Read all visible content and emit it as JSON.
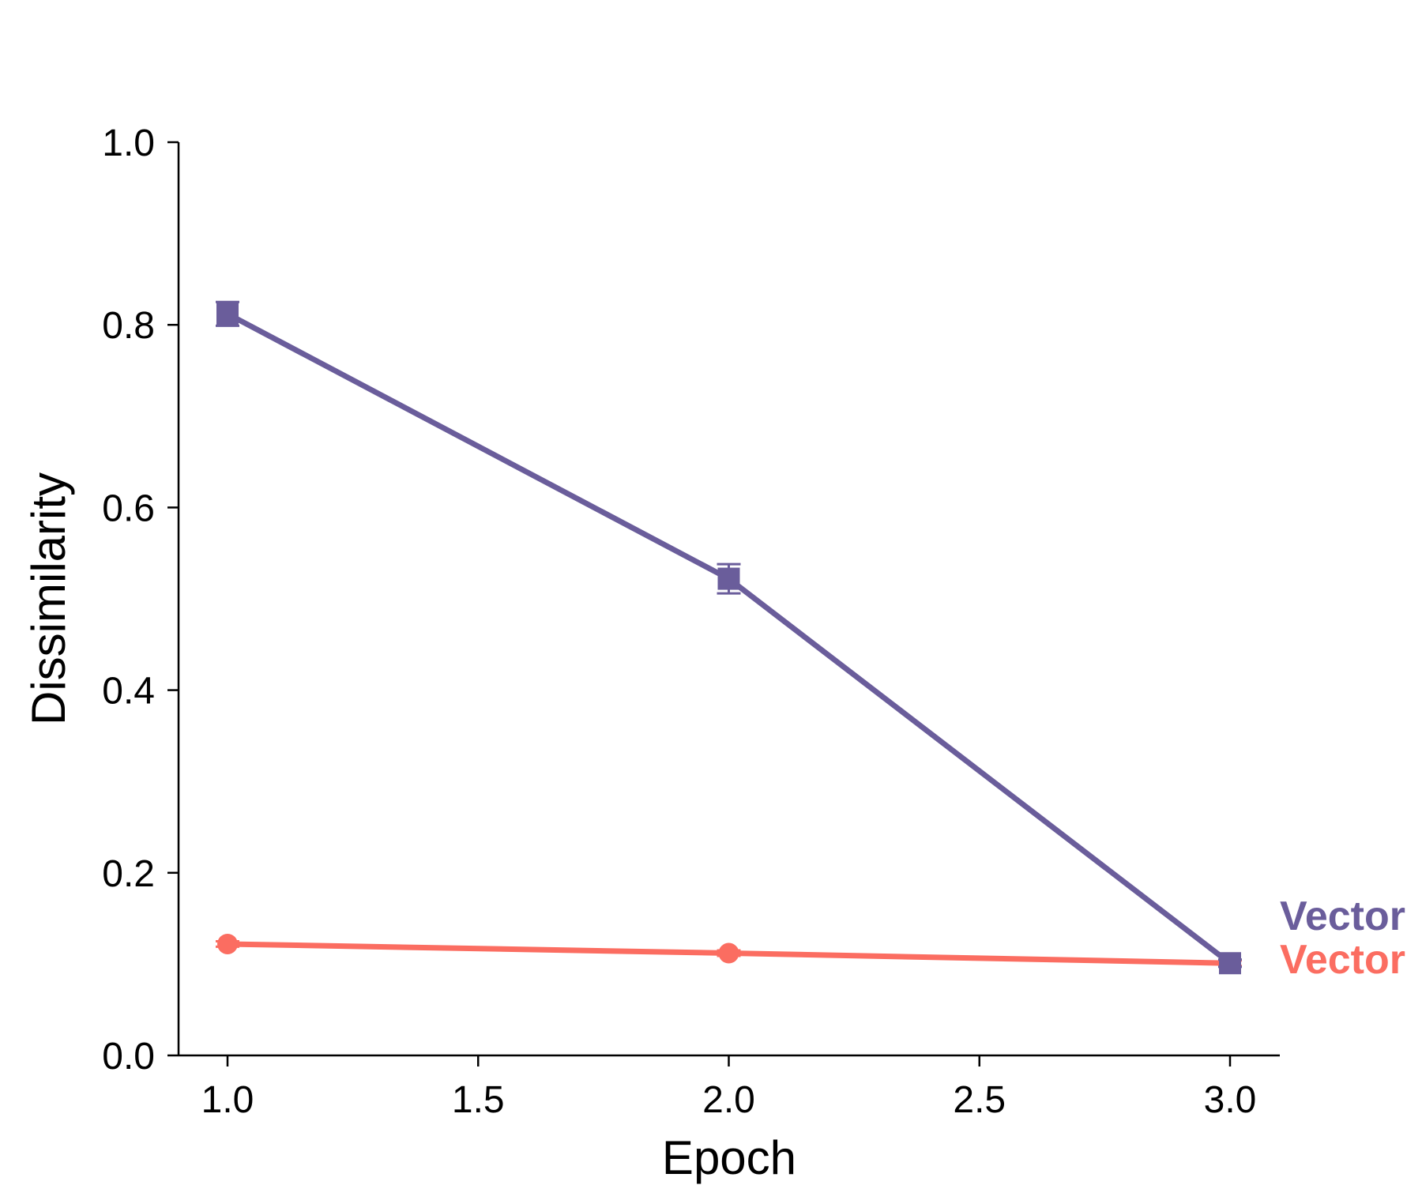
{
  "chart_data": {
    "type": "line",
    "title": "",
    "xlabel": "Epoch",
    "ylabel": "Dissimilarity",
    "xlim": [
      0.9,
      3.1
    ],
    "ylim": [
      0.0,
      1.0
    ],
    "xticks": [
      1.0,
      1.5,
      2.0,
      2.5,
      3.0
    ],
    "xtick_labels": [
      "1.0",
      "1.5",
      "2.0",
      "2.5",
      "3.0"
    ],
    "yticks": [
      0.0,
      0.2,
      0.4,
      0.6,
      0.8,
      1.0
    ],
    "ytick_labels": [
      "0.0",
      "0.2",
      "0.4",
      "0.6",
      "0.8",
      "1.0"
    ],
    "grid": false,
    "legend": "inline labels at right end of lines",
    "series": [
      {
        "name": "Vector",
        "color": "#6a5d9b",
        "marker": "square",
        "x": [
          1.0,
          2.0,
          3.0
        ],
        "y": [
          0.812,
          0.522,
          0.101
        ],
        "yerr": [
          0.013,
          0.016,
          0.004
        ]
      },
      {
        "name": "Vector",
        "color": "#fb6d61",
        "marker": "circle",
        "x": [
          1.0,
          2.0,
          3.0
        ],
        "y": [
          0.122,
          0.112,
          0.101
        ],
        "yerr": [
          0.003,
          0.003,
          0.003
        ]
      }
    ]
  }
}
